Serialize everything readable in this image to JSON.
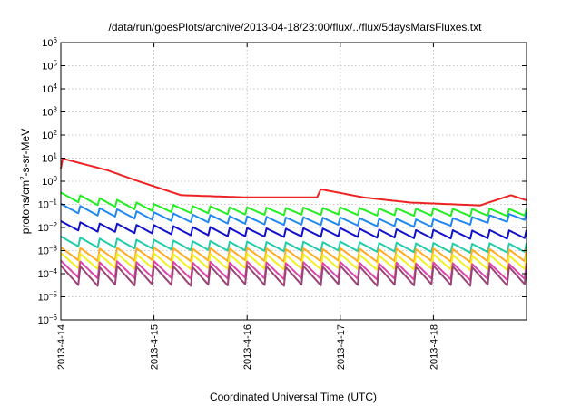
{
  "chart_data": {
    "type": "line",
    "title": "/data/run/goesPlots/archive/2013-04-18/23:00/flux/../flux/5daysMarsFluxes.txt",
    "xlabel": "Coordinated Universal Time (UTC)",
    "ylabel": "protons/cm²-s-sr-MeV",
    "y_scale": "log",
    "grid": true,
    "xlim": [
      "2013-4-14",
      "2013-4-19"
    ],
    "x_ticks": [
      "2013-4-14",
      "2013-4-15",
      "2013-4-16",
      "2013-4-17",
      "2013-4-18"
    ],
    "ylim": [
      1e-06,
      1000000.0
    ],
    "y_ticks": [
      -6,
      -5,
      -4,
      -3,
      -2,
      -1,
      0,
      1,
      2,
      3,
      4,
      5,
      6
    ],
    "sawtooth_period_hours": 4.8,
    "series": [
      {
        "color": "#ee2222",
        "profile": [
          {
            "x": "2013-4-14",
            "y": 3.5
          },
          {
            "x": "2013-4-14",
            "y": 10
          },
          {
            "x": "2013-4-14 12:00",
            "y": 3
          },
          {
            "x": "2013-4-14 20:00",
            "y": 1
          },
          {
            "x": "2013-4-15 07:00",
            "y": 0.25
          },
          {
            "x": "2013-4-16",
            "y": 0.2
          },
          {
            "x": "2013-4-16 18:00",
            "y": 0.2
          },
          {
            "x": "2013-4-16 19:00",
            "y": 0.45
          },
          {
            "x": "2013-4-17 06:00",
            "y": 0.2
          },
          {
            "x": "2013-4-17 18:00",
            "y": 0.12
          },
          {
            "x": "2013-4-18 12:00",
            "y": 0.09
          },
          {
            "x": "2013-4-18 20:00",
            "y": 0.25
          },
          {
            "x": "2013-4-19",
            "y": 0.15
          }
        ]
      },
      {
        "color": "#22ee22",
        "profile": [
          {
            "x": "2013-4-14",
            "y": 0.22
          },
          {
            "x": "2013-4-14 12:00",
            "y": 0.12
          },
          {
            "x": "2013-4-15",
            "y": 0.07
          },
          {
            "x": "2013-4-16",
            "y": 0.05
          },
          {
            "x": "2013-4-17",
            "y": 0.05
          },
          {
            "x": "2013-4-18",
            "y": 0.045
          },
          {
            "x": "2013-4-19",
            "y": 0.045
          }
        ],
        "decay": 2.2
      },
      {
        "color": "#2288ee",
        "profile": [
          {
            "x": "2013-4-14",
            "y": 0.07
          },
          {
            "x": "2013-4-14 12:00",
            "y": 0.045
          },
          {
            "x": "2013-4-15",
            "y": 0.03
          },
          {
            "x": "2013-4-16",
            "y": 0.02
          },
          {
            "x": "2013-4-17",
            "y": 0.018
          },
          {
            "x": "2013-4-18",
            "y": 0.015
          },
          {
            "x": "2013-4-19",
            "y": 0.03
          }
        ],
        "decay": 2.3
      },
      {
        "color": "#1111cc",
        "profile": [
          {
            "x": "2013-4-14",
            "y": 0.012
          },
          {
            "x": "2013-4-15",
            "y": 0.008
          },
          {
            "x": "2013-4-16",
            "y": 0.006
          },
          {
            "x": "2013-4-17",
            "y": 0.006
          },
          {
            "x": "2013-4-18",
            "y": 0.005
          },
          {
            "x": "2013-4-19",
            "y": 0.005
          }
        ],
        "decay": 2.5
      },
      {
        "color": "#22ccaa",
        "profile": [
          {
            "x": "2013-4-14",
            "y": 0.0025
          },
          {
            "x": "2013-4-15",
            "y": 0.0018
          },
          {
            "x": "2013-4-16",
            "y": 0.0015
          },
          {
            "x": "2013-4-17",
            "y": 0.0015
          },
          {
            "x": "2013-4-18",
            "y": 0.0013
          },
          {
            "x": "2013-4-19",
            "y": 0.0013
          }
        ],
        "decay": 2.7
      },
      {
        "color": "#ffaa22",
        "profile": [
          {
            "x": "2013-4-14",
            "y": 0.0007
          },
          {
            "x": "2013-4-19",
            "y": 0.0006
          }
        ],
        "decay": 4
      },
      {
        "color": "#f0f022",
        "profile": [
          {
            "x": "2013-4-14",
            "y": 0.00035
          },
          {
            "x": "2013-4-19",
            "y": 0.0003
          }
        ],
        "decay": 5
      },
      {
        "color": "#dd44aa",
        "profile": [
          {
            "x": "2013-4-14",
            "y": 0.00015
          },
          {
            "x": "2013-4-19",
            "y": 0.00012
          }
        ],
        "decay": 6
      },
      {
        "color": "#994477",
        "profile": [
          {
            "x": "2013-4-14",
            "y": 8e-05
          },
          {
            "x": "2013-4-19",
            "y": 8e-05
          }
        ],
        "decay": 8
      }
    ]
  }
}
